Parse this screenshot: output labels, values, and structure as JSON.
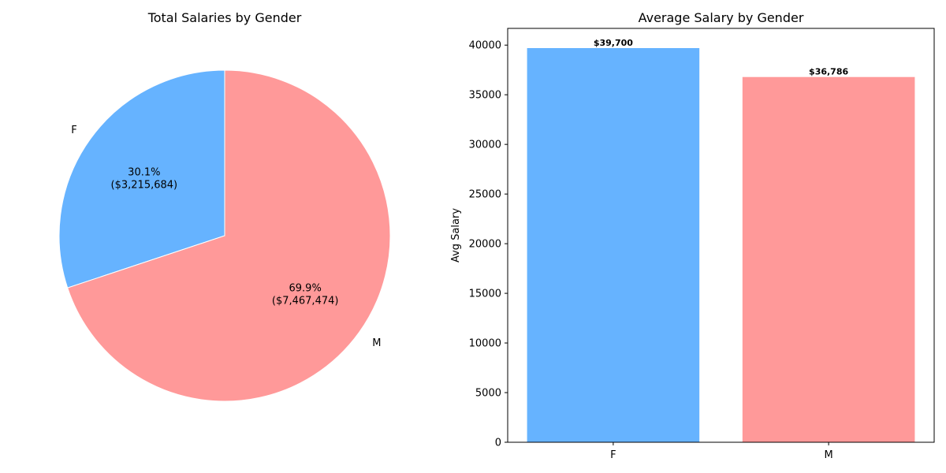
{
  "chart_data": [
    {
      "type": "pie",
      "title": "Total Salaries by Gender",
      "labels": [
        "F",
        "M"
      ],
      "values": [
        3215684,
        7467474
      ],
      "percent_labels": [
        "30.1%",
        "69.9%"
      ],
      "value_labels": [
        "($3,215,684)",
        "($7,467,474)"
      ],
      "colors": [
        "#66b3ff",
        "#ff9999"
      ]
    },
    {
      "type": "bar",
      "title": "Average Salary by Gender",
      "categories": [
        "F",
        "M"
      ],
      "values": [
        39700,
        36786
      ],
      "data_labels": [
        "$39,700",
        "$36,786"
      ],
      "xlabel": "",
      "ylabel": "Avg Salary",
      "ylim": [
        0,
        41685
      ],
      "yticks": [
        0,
        5000,
        10000,
        15000,
        20000,
        25000,
        30000,
        35000,
        40000
      ],
      "colors": [
        "#66b3ff",
        "#ff9999"
      ],
      "grid": false
    }
  ]
}
